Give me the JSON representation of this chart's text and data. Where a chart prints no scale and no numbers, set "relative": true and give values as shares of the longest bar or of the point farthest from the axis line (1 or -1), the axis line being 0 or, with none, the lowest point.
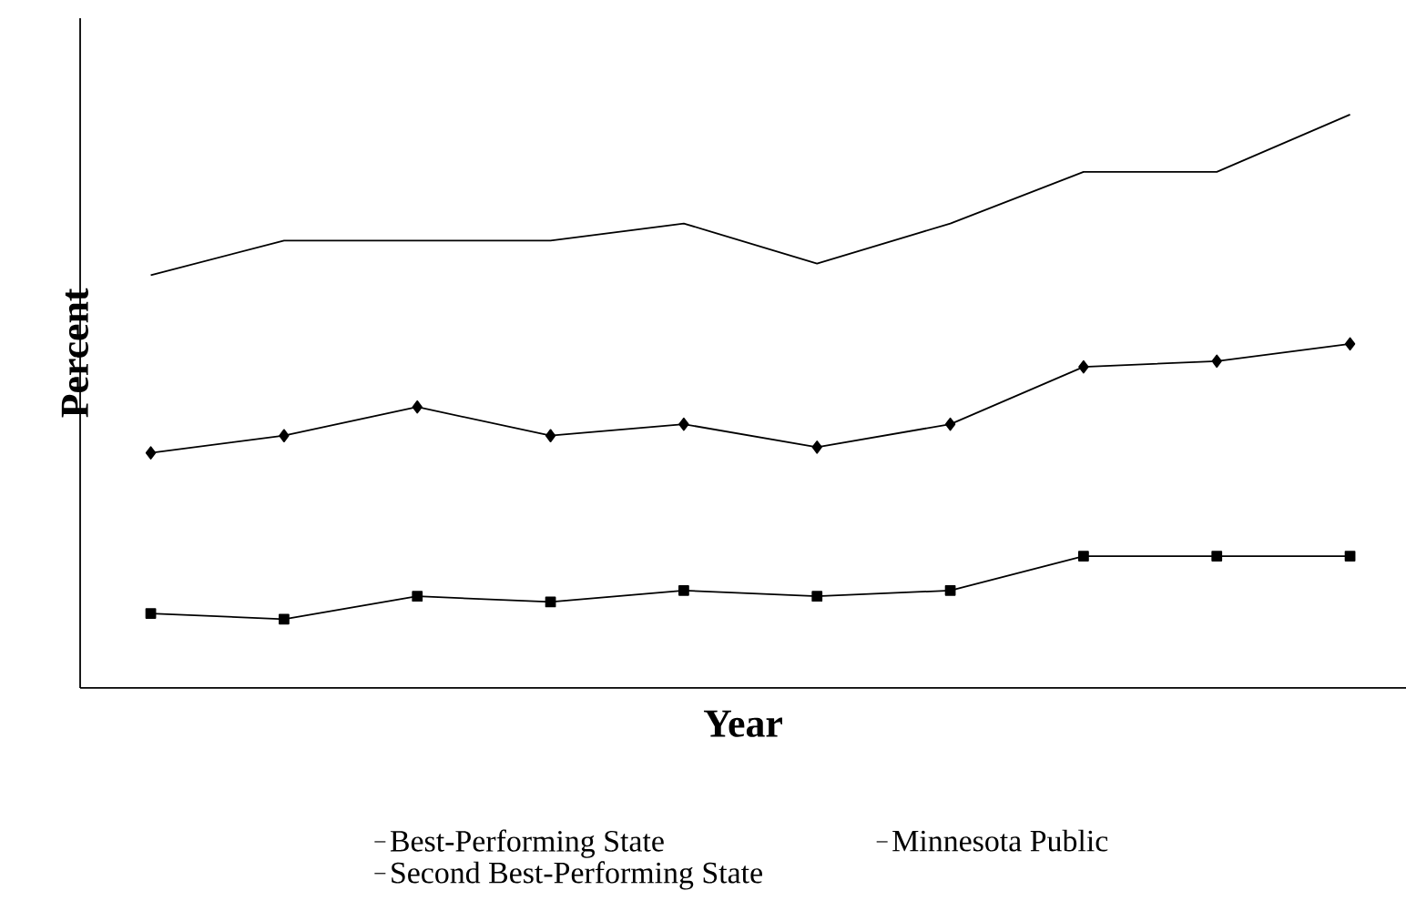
{
  "chart_data": {
    "type": "line",
    "relative": true,
    "xlabel": "Year",
    "ylabel": "Percent",
    "legend": "bottom",
    "categories": [
      null,
      null,
      null,
      null,
      null,
      null,
      null,
      null,
      null,
      null
    ],
    "series": [
      {
        "name": "Best-Performing State",
        "color": "#000000",
        "marker": "none",
        "values": [
          0.72,
          0.78,
          0.78,
          0.78,
          0.81,
          0.74,
          0.81,
          0.9,
          0.9,
          1
        ]
      },
      {
        "name": "Minnesota Public",
        "color": "#000000",
        "marker": "square",
        "values": [
          0.13,
          0.12,
          0.16,
          0.15,
          0.17,
          0.16,
          0.17,
          0.23,
          0.23,
          0.23
        ]
      },
      {
        "name": "Second Best-Performing State",
        "color": "#000000",
        "marker": "diamond",
        "values": [
          0.41,
          0.44,
          0.49,
          0.44,
          0.46,
          0.42,
          0.46,
          0.56,
          0.57,
          0.6
        ]
      }
    ]
  }
}
